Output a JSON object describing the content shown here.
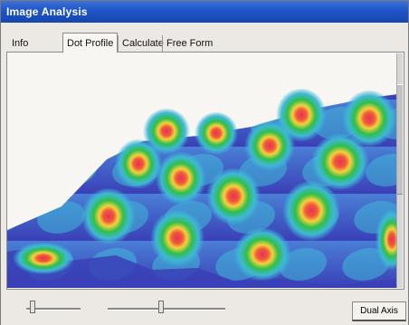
{
  "window": {
    "title": "Image Analysis"
  },
  "tabs": [
    {
      "label": "Info",
      "active": false
    },
    {
      "label": "Dot Profile",
      "active": true
    },
    {
      "label": "Calculate",
      "active": false
    },
    {
      "label": "Free Form",
      "active": false
    }
  ],
  "controls": {
    "slider1_level": 0.1,
    "slider2_level": 0.45,
    "dual_axis_button": "Dual Axis"
  },
  "colors": {
    "title_bar": "#1f55c7",
    "surface_low": "#3a3fb6",
    "surface_mid": "#3fb8d6",
    "surface_high": "#2fbf4a",
    "surface_peak": "#e8315a"
  }
}
